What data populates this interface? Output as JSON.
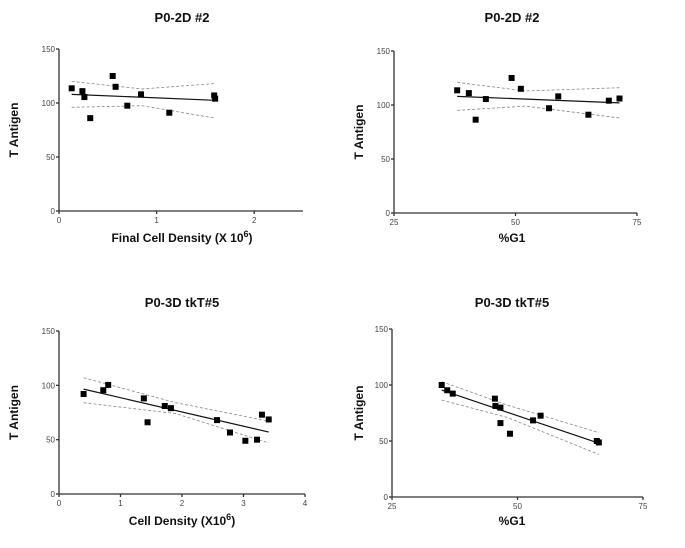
{
  "chart_data": [
    {
      "type": "scatter",
      "title": "P0-2D #2",
      "xlabel": "Final Cell Density (X 10",
      "xlabel_sup": "6",
      "xlabel_end": ")",
      "ylabel": "T Antigen",
      "xlim": [
        0,
        2.5
      ],
      "ylim": [
        0,
        150
      ],
      "xticks": [
        0,
        1,
        2
      ],
      "yticks": [
        0,
        50,
        100,
        150
      ],
      "grid": false,
      "x": [
        0.13,
        0.24,
        0.26,
        0.32,
        0.55,
        0.58,
        0.7,
        0.84,
        1.13,
        1.59,
        1.6
      ],
      "y": [
        113.6,
        111,
        105.5,
        86,
        125,
        115,
        97.5,
        108,
        91,
        107,
        104
      ],
      "fit": {
        "x": [
          0.13,
          1.6
        ],
        "y": [
          108,
          102.5
        ]
      },
      "ci_upper": {
        "x": [
          0.13,
          0.85,
          1.6
        ],
        "y": [
          120,
          113,
          118
        ]
      },
      "ci_lower": {
        "x": [
          0.13,
          0.85,
          1.6
        ],
        "y": [
          96,
          97.5,
          86
        ]
      }
    },
    {
      "type": "scatter",
      "title": "P0-2D #2",
      "xlabel": "%G1",
      "ylabel": "T Antigen",
      "xlim": [
        25,
        75
      ],
      "ylim": [
        0,
        150
      ],
      "xticks": [
        25,
        50,
        75
      ],
      "yticks": [
        0,
        50,
        100,
        150
      ],
      "grid": false,
      "x": [
        38.0,
        40.4,
        41.8,
        43.9,
        49.2,
        51.1,
        56.9,
        58.8,
        65.0,
        69.2,
        71.4
      ],
      "y": [
        113.6,
        111,
        86.4,
        105.5,
        125,
        115,
        97,
        108,
        91,
        104,
        106
      ],
      "fit": {
        "x": [
          38,
          71.4
        ],
        "y": [
          108,
          102
        ]
      },
      "ci_upper": {
        "x": [
          38,
          52,
          71.4
        ],
        "y": [
          121,
          113,
          116
        ]
      },
      "ci_lower": {
        "x": [
          38,
          52,
          71.4
        ],
        "y": [
          95,
          99,
          88
        ]
      }
    },
    {
      "type": "scatter",
      "title": "P0-3D tkT#5",
      "xlabel": "Cell Density (X10",
      "xlabel_sup": "6",
      "xlabel_end": ")",
      "ylabel": "T Antigen",
      "xlim": [
        0,
        4
      ],
      "ylim": [
        0,
        150
      ],
      "xticks": [
        0,
        1,
        2,
        3,
        4
      ],
      "yticks": [
        0,
        50,
        100,
        150
      ],
      "grid": false,
      "x": [
        0.4,
        0.72,
        0.8,
        1.38,
        1.44,
        1.72,
        1.82,
        2.57,
        2.78,
        3.03,
        3.22,
        3.3,
        3.41
      ],
      "y": [
        92,
        95.5,
        100.4,
        88,
        66,
        81,
        79,
        68,
        56.6,
        49,
        50,
        73,
        68.6
      ],
      "fit": {
        "x": [
          0.4,
          3.41
        ],
        "y": [
          96.5,
          57
        ]
      },
      "ci_upper": {
        "x": [
          0.4,
          1.9,
          3.41
        ],
        "y": [
          107,
          84,
          67
        ]
      },
      "ci_lower": {
        "x": [
          0.4,
          1.9,
          3.41
        ],
        "y": [
          84,
          74,
          47
        ]
      }
    },
    {
      "type": "scatter",
      "title": "P0-3D tkT#5",
      "xlabel": "%G1",
      "ylabel": "T Antigen",
      "xlim": [
        25,
        75
      ],
      "ylim": [
        0,
        150
      ],
      "xticks": [
        25,
        50,
        75
      ],
      "yticks": [
        0,
        50,
        100,
        150
      ],
      "grid": false,
      "x": [
        34.9,
        36.0,
        37.1,
        45.5,
        45.6,
        46.6,
        46.6,
        48.5,
        53.1,
        54.6,
        65.8,
        66.2
      ],
      "y": [
        100,
        95.3,
        92.3,
        87.8,
        81.3,
        79.8,
        66,
        56.5,
        68.4,
        72.6,
        50,
        48.7
      ],
      "fit": {
        "x": [
          34.9,
          66.2
        ],
        "y": [
          95.5,
          48
        ]
      },
      "ci_upper": {
        "x": [
          34.9,
          48,
          66.2
        ],
        "y": [
          103,
          82,
          57.5
        ]
      },
      "ci_lower": {
        "x": [
          34.9,
          48,
          66.2
        ],
        "y": [
          86.5,
          71,
          38
        ]
      }
    }
  ]
}
